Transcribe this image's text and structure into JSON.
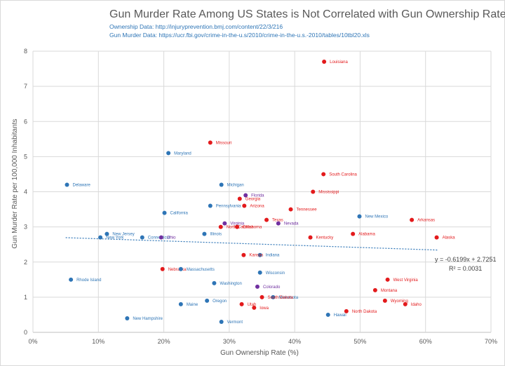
{
  "chart_data": {
    "type": "scatter",
    "title": "Gun Murder Rate Among US States is Not Correlated with Gun Ownership Rate",
    "subtitles": [
      "Ownership Data: http://injuryprevention.bmj.com/content/22/3/216",
      "Gun Murder Data: https://ucr.fbi.gov/crime-in-the-u.s/2010/crime-in-the-u.s.-2010/tables/10tbl20.xls"
    ],
    "xlabel": "Gun Ownership Rate (%)",
    "ylabel": "Gun Murder Rate per 100,000 Inhabitants",
    "xlim": [
      0,
      70
    ],
    "ylim": [
      0,
      8
    ],
    "xticks": [
      "0%",
      "10%",
      "20%",
      "30%",
      "40%",
      "50%",
      "60%",
      "70%"
    ],
    "yticks": [
      "0",
      "1",
      "2",
      "3",
      "4",
      "5",
      "6",
      "7",
      "8"
    ],
    "grid": true,
    "colors": {
      "blue": "#2e75b6",
      "red": "#e31a1c",
      "purple": "#7030a0",
      "trend": "#2e75b6"
    },
    "trendline": {
      "slope": -0.6199,
      "intercept": 2.7251
    },
    "equation": "y = -0.6199x + 2.7251",
    "r_squared": "R² = 0.0031",
    "points": [
      {
        "label": "Louisiana",
        "x": 44.5,
        "y": 7.7,
        "color": "red"
      },
      {
        "label": "Missouri",
        "x": 27.1,
        "y": 5.4,
        "color": "red"
      },
      {
        "label": "Maryland",
        "x": 20.7,
        "y": 5.1,
        "color": "blue"
      },
      {
        "label": "South Carolina",
        "x": 44.4,
        "y": 4.5,
        "color": "red"
      },
      {
        "label": "Delaware",
        "x": 5.2,
        "y": 4.2,
        "color": "blue"
      },
      {
        "label": "Michigan",
        "x": 28.8,
        "y": 4.2,
        "color": "blue"
      },
      {
        "label": "Mississippi",
        "x": 42.8,
        "y": 4.0,
        "color": "red"
      },
      {
        "label": "Florida",
        "x": 32.5,
        "y": 3.9,
        "color": "purple"
      },
      {
        "label": "Georgia",
        "x": 31.6,
        "y": 3.8,
        "color": "red"
      },
      {
        "label": "Pennsylvania",
        "x": 27.1,
        "y": 3.6,
        "color": "blue"
      },
      {
        "label": "Arizona",
        "x": 32.3,
        "y": 3.6,
        "color": "red"
      },
      {
        "label": "Tennessee",
        "x": 39.4,
        "y": 3.5,
        "color": "red"
      },
      {
        "label": "California",
        "x": 20.1,
        "y": 3.4,
        "color": "blue"
      },
      {
        "label": "New Mexico",
        "x": 49.9,
        "y": 3.3,
        "color": "blue"
      },
      {
        "label": "Arkansas",
        "x": 57.9,
        "y": 3.2,
        "color": "red"
      },
      {
        "label": "Texas",
        "x": 35.7,
        "y": 3.2,
        "color": "red"
      },
      {
        "label": "Virginia",
        "x": 29.3,
        "y": 3.1,
        "color": "purple"
      },
      {
        "label": "Nevada",
        "x": 37.5,
        "y": 3.1,
        "color": "purple"
      },
      {
        "label": "Oklahoma",
        "x": 31.2,
        "y": 3.0,
        "color": "red"
      },
      {
        "label": "North Carolina",
        "x": 28.7,
        "y": 3.0,
        "color": "red"
      },
      {
        "label": "New Jersey",
        "x": 11.3,
        "y": 2.8,
        "color": "blue"
      },
      {
        "label": "Illinois",
        "x": 26.2,
        "y": 2.8,
        "color": "blue"
      },
      {
        "label": "Alabama",
        "x": 48.9,
        "y": 2.8,
        "color": "red"
      },
      {
        "label": "New York",
        "x": 10.3,
        "y": 2.7,
        "color": "blue"
      },
      {
        "label": "Connecticut",
        "x": 16.7,
        "y": 2.7,
        "color": "blue"
      },
      {
        "label": "Ohio",
        "x": 19.6,
        "y": 2.7,
        "color": "purple"
      },
      {
        "label": "Kentucky",
        "x": 42.4,
        "y": 2.7,
        "color": "red"
      },
      {
        "label": "Alaska",
        "x": 61.7,
        "y": 2.7,
        "color": "red"
      },
      {
        "label": "Indiana",
        "x": 34.7,
        "y": 2.2,
        "color": "blue"
      },
      {
        "label": "Kansas",
        "x": 32.2,
        "y": 2.2,
        "color": "red"
      },
      {
        "label": "Nebraska",
        "x": 19.8,
        "y": 1.8,
        "color": "red"
      },
      {
        "label": "Massachusetts",
        "x": 22.6,
        "y": 1.8,
        "color": "blue"
      },
      {
        "label": "Wisconsin",
        "x": 34.7,
        "y": 1.7,
        "color": "blue"
      },
      {
        "label": "Rhode Island",
        "x": 5.8,
        "y": 1.5,
        "color": "blue"
      },
      {
        "label": "West Virginia",
        "x": 54.2,
        "y": 1.5,
        "color": "red"
      },
      {
        "label": "Washington",
        "x": 27.7,
        "y": 1.4,
        "color": "blue"
      },
      {
        "label": "Colorado",
        "x": 34.3,
        "y": 1.3,
        "color": "purple"
      },
      {
        "label": "Montana",
        "x": 52.3,
        "y": 1.2,
        "color": "red"
      },
      {
        "label": "Minnesota",
        "x": 36.7,
        "y": 1.0,
        "color": "blue"
      },
      {
        "label": "South Dakota",
        "x": 35.0,
        "y": 1.0,
        "color": "red"
      },
      {
        "label": "Wyoming",
        "x": 53.8,
        "y": 0.9,
        "color": "red"
      },
      {
        "label": "Oregon",
        "x": 26.6,
        "y": 0.9,
        "color": "blue"
      },
      {
        "label": "Idaho",
        "x": 56.9,
        "y": 0.8,
        "color": "red"
      },
      {
        "label": "Utah",
        "x": 31.9,
        "y": 0.8,
        "color": "red"
      },
      {
        "label": "Maine",
        "x": 22.6,
        "y": 0.8,
        "color": "blue"
      },
      {
        "label": "Iowa",
        "x": 33.8,
        "y": 0.7,
        "color": "red"
      },
      {
        "label": "North Dakota",
        "x": 47.9,
        "y": 0.6,
        "color": "red"
      },
      {
        "label": "Hawaii",
        "x": 45.1,
        "y": 0.5,
        "color": "blue"
      },
      {
        "label": "New Hampshire",
        "x": 14.4,
        "y": 0.4,
        "color": "blue"
      },
      {
        "label": "Vermont",
        "x": 28.8,
        "y": 0.3,
        "color": "blue"
      }
    ]
  }
}
